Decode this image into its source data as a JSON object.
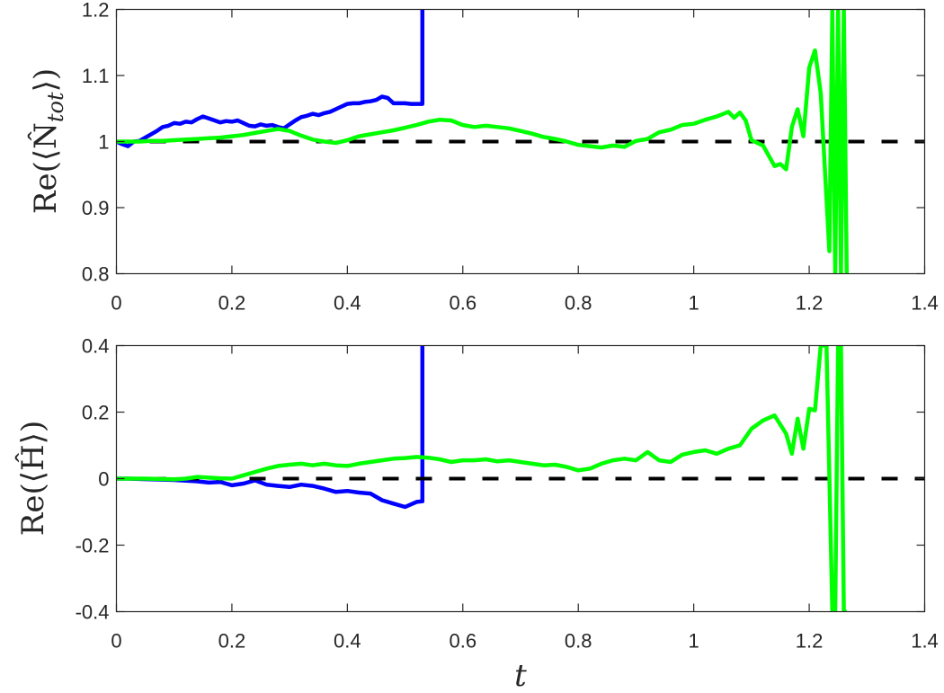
{
  "chart_data": [
    {
      "type": "line",
      "title": "",
      "xlabel": "",
      "ylabel": "Re(⟨N̂_tot⟩)",
      "xlim": [
        0,
        1.4
      ],
      "ylim": [
        0.8,
        1.2
      ],
      "xticks": [
        "0",
        "0.2",
        "0.4",
        "0.6",
        "0.8",
        "1",
        "1.2",
        "1.4"
      ],
      "yticks": [
        "0.8",
        "0.9",
        "1",
        "1.1",
        "1.2"
      ],
      "grid": false,
      "legend": null,
      "reference_line": {
        "y": 1.0,
        "style": "dashed",
        "color": "#000000"
      },
      "series": [
        {
          "name": "blue",
          "color": "#0000ff",
          "x": [
            0,
            0.01,
            0.02,
            0.03,
            0.04,
            0.05,
            0.06,
            0.07,
            0.08,
            0.09,
            0.1,
            0.11,
            0.12,
            0.13,
            0.14,
            0.15,
            0.16,
            0.17,
            0.18,
            0.19,
            0.2,
            0.21,
            0.22,
            0.23,
            0.24,
            0.25,
            0.26,
            0.27,
            0.28,
            0.29,
            0.3,
            0.31,
            0.32,
            0.33,
            0.34,
            0.35,
            0.36,
            0.37,
            0.38,
            0.39,
            0.4,
            0.41,
            0.42,
            0.43,
            0.44,
            0.45,
            0.46,
            0.47,
            0.48,
            0.49,
            0.5,
            0.51,
            0.52,
            0.53,
            0.53
          ],
          "y": [
            1.0,
            0.996,
            0.993,
            1.0,
            1.001,
            1.006,
            1.011,
            1.016,
            1.022,
            1.024,
            1.028,
            1.027,
            1.03,
            1.029,
            1.034,
            1.038,
            1.035,
            1.032,
            1.029,
            1.031,
            1.03,
            1.032,
            1.028,
            1.024,
            1.023,
            1.026,
            1.024,
            1.025,
            1.022,
            1.02,
            1.026,
            1.032,
            1.037,
            1.039,
            1.042,
            1.04,
            1.043,
            1.045,
            1.049,
            1.053,
            1.057,
            1.058,
            1.058,
            1.06,
            1.061,
            1.063,
            1.068,
            1.066,
            1.058,
            1.058,
            1.058,
            1.057,
            1.057,
            1.057,
            1.2
          ]
        },
        {
          "name": "green",
          "color": "#00ff00",
          "x": [
            0,
            0.02,
            0.04,
            0.06,
            0.08,
            0.1,
            0.12,
            0.14,
            0.16,
            0.18,
            0.2,
            0.22,
            0.24,
            0.26,
            0.28,
            0.3,
            0.32,
            0.34,
            0.36,
            0.38,
            0.4,
            0.42,
            0.44,
            0.46,
            0.48,
            0.5,
            0.52,
            0.54,
            0.56,
            0.58,
            0.6,
            0.62,
            0.64,
            0.66,
            0.68,
            0.7,
            0.72,
            0.74,
            0.76,
            0.78,
            0.8,
            0.82,
            0.84,
            0.86,
            0.88,
            0.9,
            0.92,
            0.94,
            0.96,
            0.98,
            1.0,
            1.02,
            1.04,
            1.06,
            1.07,
            1.08,
            1.09,
            1.1,
            1.12,
            1.14,
            1.15,
            1.16,
            1.17,
            1.18,
            1.19,
            1.2,
            1.21,
            1.22,
            1.235,
            1.24,
            1.245,
            1.25,
            1.255,
            1.26,
            1.265
          ],
          "y": [
            1.0,
            1.0,
            1.0,
            1.001,
            1.001,
            1.002,
            1.003,
            1.004,
            1.005,
            1.006,
            1.008,
            1.01,
            1.013,
            1.016,
            1.019,
            1.016,
            1.009,
            1.003,
            1.0,
            0.998,
            1.002,
            1.008,
            1.011,
            1.014,
            1.017,
            1.021,
            1.025,
            1.03,
            1.033,
            1.032,
            1.025,
            1.022,
            1.024,
            1.022,
            1.02,
            1.016,
            1.012,
            1.007,
            1.004,
            1.0,
            0.995,
            0.993,
            0.991,
            0.994,
            0.992,
            1.001,
            1.004,
            1.014,
            1.018,
            1.025,
            1.027,
            1.033,
            1.038,
            1.045,
            1.036,
            1.044,
            1.032,
            1.002,
            0.994,
            0.963,
            0.966,
            0.958,
            1.022,
            1.049,
            1.008,
            1.112,
            1.138,
            1.073,
            0.834,
            1.2,
            0.8,
            1.2,
            0.8,
            1.2,
            0.8
          ]
        }
      ]
    },
    {
      "type": "line",
      "title": "",
      "xlabel": "t",
      "ylabel": "Re(⟨Ĥ⟩)",
      "xlim": [
        0,
        1.4
      ],
      "ylim": [
        -0.4,
        0.4
      ],
      "xticks": [
        "0",
        "0.2",
        "0.4",
        "0.6",
        "0.8",
        "1",
        "1.2",
        "1.4"
      ],
      "yticks": [
        "-0.4",
        "-0.2",
        "0",
        "0.2",
        "0.4"
      ],
      "grid": false,
      "legend": null,
      "reference_line": {
        "y": 0.0,
        "style": "dashed",
        "color": "#000000"
      },
      "series": [
        {
          "name": "blue",
          "color": "#0000ff",
          "x": [
            0,
            0.02,
            0.04,
            0.06,
            0.08,
            0.1,
            0.12,
            0.14,
            0.16,
            0.18,
            0.2,
            0.22,
            0.24,
            0.26,
            0.28,
            0.3,
            0.32,
            0.34,
            0.36,
            0.38,
            0.4,
            0.42,
            0.44,
            0.46,
            0.48,
            0.5,
            0.52,
            0.53,
            0.53
          ],
          "y": [
            0.0,
            0.0,
            -0.001,
            -0.002,
            -0.003,
            -0.004,
            -0.006,
            -0.008,
            -0.012,
            -0.01,
            -0.02,
            -0.015,
            -0.005,
            -0.018,
            -0.022,
            -0.025,
            -0.018,
            -0.022,
            -0.03,
            -0.04,
            -0.037,
            -0.042,
            -0.045,
            -0.065,
            -0.075,
            -0.085,
            -0.07,
            -0.068,
            0.4
          ]
        },
        {
          "name": "green",
          "color": "#00ff00",
          "x": [
            0,
            0.05,
            0.1,
            0.12,
            0.14,
            0.16,
            0.18,
            0.2,
            0.22,
            0.24,
            0.26,
            0.28,
            0.3,
            0.32,
            0.34,
            0.36,
            0.38,
            0.4,
            0.42,
            0.44,
            0.46,
            0.48,
            0.5,
            0.52,
            0.54,
            0.56,
            0.58,
            0.6,
            0.62,
            0.64,
            0.66,
            0.68,
            0.7,
            0.72,
            0.74,
            0.76,
            0.78,
            0.8,
            0.82,
            0.84,
            0.86,
            0.88,
            0.9,
            0.92,
            0.94,
            0.96,
            0.98,
            1.0,
            1.02,
            1.04,
            1.06,
            1.08,
            1.1,
            1.12,
            1.14,
            1.16,
            1.17,
            1.18,
            1.19,
            1.2,
            1.21,
            1.22,
            1.23,
            1.24,
            1.245,
            1.25,
            1.255,
            1.26,
            1.265
          ],
          "y": [
            0.0,
            0.0,
            -0.002,
            0.0,
            0.005,
            0.003,
            0.001,
            0.0,
            0.01,
            0.02,
            0.03,
            0.038,
            0.042,
            0.045,
            0.04,
            0.045,
            0.04,
            0.038,
            0.045,
            0.05,
            0.055,
            0.06,
            0.062,
            0.065,
            0.063,
            0.058,
            0.05,
            0.055,
            0.055,
            0.058,
            0.052,
            0.055,
            0.05,
            0.045,
            0.04,
            0.042,
            0.035,
            0.025,
            0.03,
            0.045,
            0.055,
            0.06,
            0.055,
            0.08,
            0.055,
            0.05,
            0.072,
            0.08,
            0.085,
            0.075,
            0.09,
            0.1,
            0.15,
            0.175,
            0.19,
            0.135,
            0.075,
            0.18,
            0.09,
            0.21,
            0.205,
            0.4,
            0.4,
            -0.4,
            -0.4,
            0.4,
            0.4,
            -0.4,
            -0.4
          ]
        }
      ]
    }
  ],
  "plot_top": {
    "ylabel": "Re(⟨N̂tot⟩)",
    "ylabel_main": "Re(⟨N̂",
    "ylabel_sub": "tot",
    "ylabel_close": "⟩)"
  },
  "plot_bottom": {
    "ylabel": "Re(⟨Ĥ⟩)",
    "xlabel": "t"
  }
}
